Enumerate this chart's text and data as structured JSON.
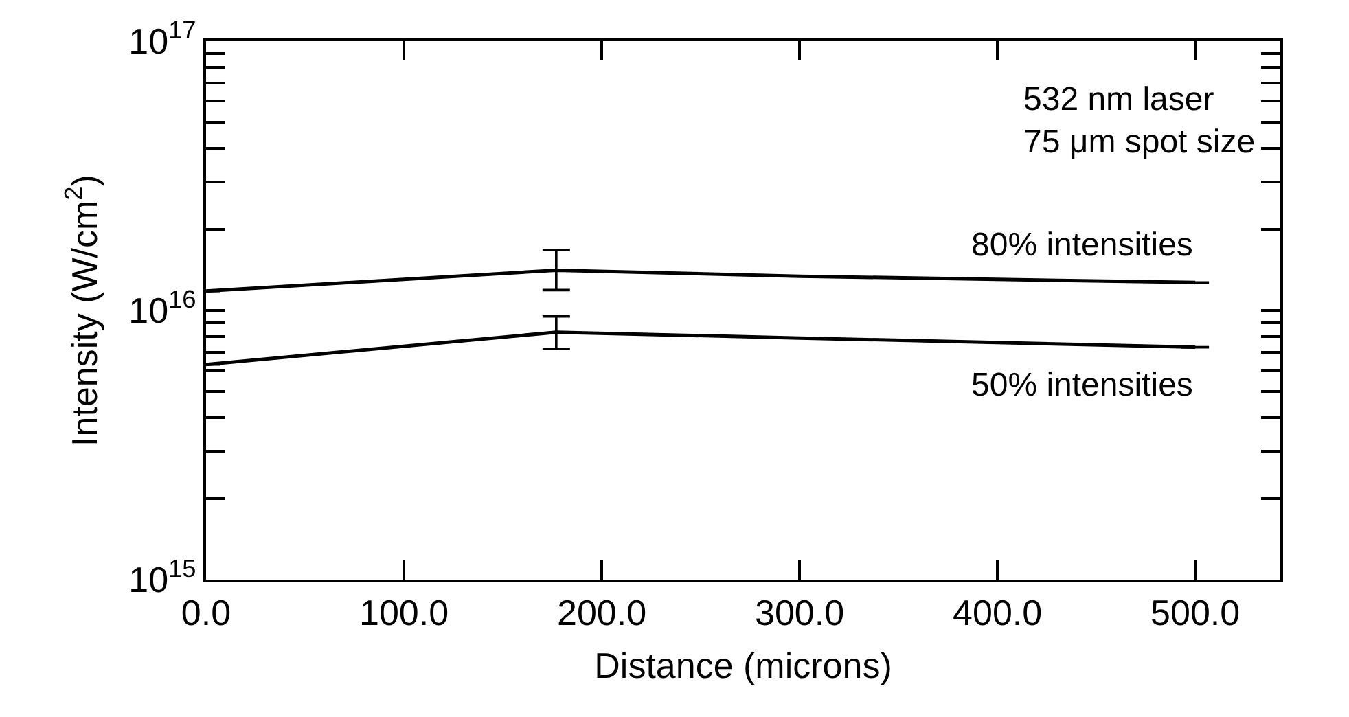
{
  "chart_data": {
    "type": "line",
    "xlabel": "Distance (microns)",
    "ylabel": "Intensity (W/cm$^{2}$)",
    "log": "y",
    "grid": false,
    "legend": "top right",
    "marker": "none",
    "line_style": "solid",
    "x": [
      0,
      177,
      300,
      500
    ],
    "xlim": [
      0,
      543
    ],
    "xticks": [
      {
        "value": 0,
        "label": "0.0"
      },
      {
        "value": 100,
        "label": "100.0"
      },
      {
        "value": 200,
        "label": "200.0"
      },
      {
        "value": 300,
        "label": "300.0"
      },
      {
        "value": 400,
        "label": "400.0"
      },
      {
        "value": 500,
        "label": "500.0"
      }
    ],
    "ylim": [
      1000000000000000.0,
      1e+17
    ],
    "yticks": [
      {
        "value": 1000000000000000.0,
        "label": "10$^{15}$"
      },
      {
        "value": 2000000000000000.0,
        "label": null
      },
      {
        "value": 3000000000000000.0,
        "label": null
      },
      {
        "value": 4000000000000000.0,
        "label": null
      },
      {
        "value": 5000000000000000.0,
        "label": null
      },
      {
        "value": 6000000000000000.0,
        "label": null
      },
      {
        "value": 7000000000000000.0,
        "label": null
      },
      {
        "value": 8000000000000000.0,
        "label": null
      },
      {
        "value": 9000000000000000.0,
        "label": null
      },
      {
        "value": 1e+16,
        "label": "10$^{16}$"
      },
      {
        "value": 2e+16,
        "label": null
      },
      {
        "value": 3e+16,
        "label": null
      },
      {
        "value": 4e+16,
        "label": null
      },
      {
        "value": 5e+16,
        "label": null
      },
      {
        "value": 6e+16,
        "label": null
      },
      {
        "value": 7e+16,
        "label": null
      },
      {
        "value": 8e+16,
        "label": null
      },
      {
        "value": 9e+16,
        "label": null
      },
      {
        "value": 1e+17,
        "label": "10$^{17}$"
      }
    ],
    "series": [
      {
        "name": "80% intensities",
        "color": "#000000",
        "values": [
          1.18e+16,
          1.41e+16,
          1.34e+16,
          1.27e+16
        ],
        "errors": [
          null,
          [
            1.19e+16,
            1.68e+16
          ],
          null,
          null
        ]
      },
      {
        "name": "50% intensities",
        "color": "#000000",
        "values": [
          6300000000000000.0,
          8300000000000000.0,
          7900000000000000.0,
          7300000000000000.0
        ],
        "errors": [
          null,
          [
            7200000000000000.0,
            9500000000000000.0
          ],
          null,
          null
        ]
      }
    ],
    "annotations": [
      "532 nm laser\n75 μm spot size"
    ]
  }
}
